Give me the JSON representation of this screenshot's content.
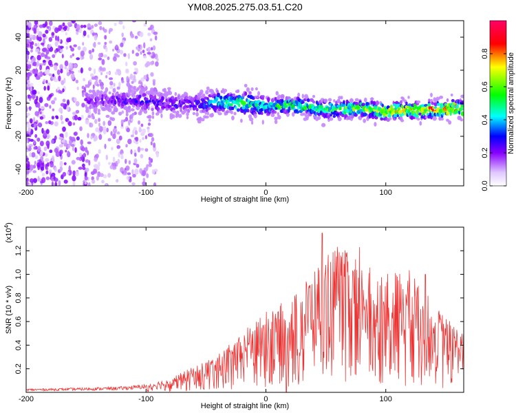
{
  "chart_data": [
    {
      "type": "heatmap",
      "title": "YM08.2025.275.03.51.C20",
      "xlabel": "Height of straight line (km)",
      "ylabel": "Frequency (Hz)",
      "xlim": [
        -200,
        165
      ],
      "ylim": [
        -50,
        50
      ],
      "xticks": [
        -200,
        -100,
        0,
        100
      ],
      "xtick_labels": [
        "-200",
        "-100",
        "0",
        "100"
      ],
      "yticks": [
        40,
        20,
        0,
        -20,
        -40
      ],
      "ytick_labels": [
        "40",
        "20",
        "0",
        "-20",
        "-40"
      ],
      "colorbar": {
        "label": "Normalized spectral amplitude",
        "range": [
          0,
          1
        ],
        "ticks": [
          0.0,
          0.2,
          0.4,
          0.6,
          0.8
        ],
        "tick_labels": [
          "0.0",
          "0.2",
          "0.4",
          "0.6",
          "0.8"
        ],
        "colors": [
          "#ffffff",
          "#d8b8ff",
          "#8800ff",
          "#0000ff",
          "#00ffff",
          "#00ff00",
          "#ffff00",
          "#ff0000",
          "#ff0066"
        ]
      },
      "ridge": {
        "x": [
          -200,
          -150,
          -120,
          -100,
          -80,
          -60,
          -40,
          -20,
          0,
          20,
          40,
          60,
          80,
          100,
          120,
          140,
          165
        ],
        "freq": [
          0,
          1,
          2,
          1,
          0,
          -1,
          1,
          0,
          -2,
          -1,
          -3,
          -4,
          -3,
          -5,
          -4,
          -4,
          -3
        ],
        "peak_amplitude": [
          0.05,
          0.2,
          0.25,
          0.28,
          0.25,
          0.3,
          0.45,
          0.55,
          0.5,
          0.6,
          0.55,
          0.6,
          0.65,
          0.75,
          0.8,
          0.85,
          0.8
        ]
      }
    },
    {
      "type": "line",
      "xlabel": "Height of straight line (km)",
      "ylabel": "SNR (10 * v/v)",
      "yscale_label": "(x10",
      "yscale_exp": "4",
      "yscale_close": ")",
      "xlim": [
        -200,
        165
      ],
      "ylim": [
        0,
        1.4
      ],
      "xticks": [
        -200,
        -100,
        0,
        100
      ],
      "xtick_labels": [
        "-200",
        "-100",
        "0",
        "100"
      ],
      "yticks": [
        0.2,
        0.4,
        0.6,
        0.8,
        1.0,
        1.2
      ],
      "ytick_labels": [
        "0.2",
        "0.4",
        "0.6",
        "0.8",
        "1.0",
        "1.2"
      ],
      "color": "#ee3333",
      "envelope": {
        "x": [
          -200,
          -150,
          -120,
          -100,
          -80,
          -60,
          -40,
          -20,
          0,
          20,
          40,
          60,
          80,
          100,
          120,
          140,
          165
        ],
        "y": [
          0.03,
          0.04,
          0.05,
          0.07,
          0.12,
          0.22,
          0.32,
          0.5,
          0.72,
          0.78,
          1.05,
          1.25,
          1.1,
          1.0,
          1.05,
          0.75,
          0.5
        ]
      },
      "peaks": [
        {
          "x": 47,
          "y": 1.35
        },
        {
          "x": 78,
          "y": 1.23
        },
        {
          "x": 133,
          "y": 1.0
        }
      ]
    }
  ]
}
